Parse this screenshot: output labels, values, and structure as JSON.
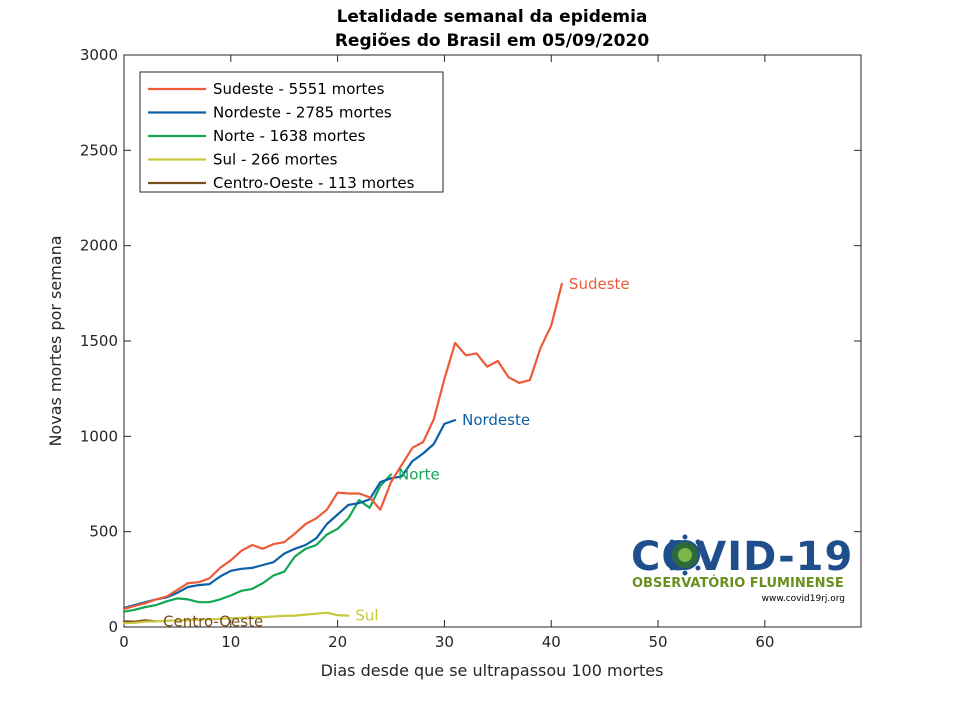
{
  "chart_data": {
    "type": "line",
    "title": "Letalidade semanal da epidemia",
    "subtitle": "Regiões do Brasil em 05/09/2020",
    "xlabel": "Dias desde que se ultrapassou 100 mortes",
    "ylabel": "Novas mortes por semana",
    "xlim": [
      0,
      69
    ],
    "ylim": [
      0,
      3000
    ],
    "xticks": [
      0,
      10,
      20,
      30,
      40,
      50,
      60
    ],
    "yticks": [
      0,
      500,
      1000,
      1500,
      2000,
      2500,
      3000
    ],
    "grid": false,
    "legend_position": "top-left",
    "series": [
      {
        "name": "Sudeste",
        "legend": "Sudeste - 5551 mortes",
        "end_label": "Sudeste",
        "color": "#ee5a37",
        "x": [
          0,
          1,
          2,
          3,
          4,
          5,
          6,
          7,
          8,
          9,
          10,
          11,
          12,
          13,
          14,
          15,
          16,
          17,
          18,
          19,
          20,
          21,
          22,
          23,
          24,
          25,
          26,
          27,
          28,
          29,
          30,
          31,
          32,
          33,
          34,
          35,
          36,
          37,
          38,
          39,
          40,
          41
        ],
        "y": [
          95,
          110,
          125,
          145,
          160,
          195,
          230,
          235,
          255,
          310,
          350,
          400,
          430,
          410,
          435,
          445,
          490,
          540,
          570,
          615,
          705,
          700,
          700,
          680,
          615,
          760,
          850,
          940,
          970,
          1090,
          1300,
          1490,
          1425,
          1435,
          1365,
          1395,
          1310,
          1280,
          1295,
          1465,
          1580,
          1800
        ]
      },
      {
        "name": "Nordeste",
        "legend": "Nordeste - 2785 mortes",
        "end_label": "Nordeste",
        "color": "#0d5fa8",
        "x": [
          0,
          1,
          2,
          3,
          4,
          5,
          6,
          7,
          8,
          9,
          10,
          11,
          12,
          13,
          14,
          15,
          16,
          17,
          18,
          19,
          20,
          21,
          22,
          23,
          24,
          25,
          26,
          27,
          28,
          29,
          30,
          31
        ],
        "y": [
          100,
          115,
          130,
          145,
          155,
          180,
          210,
          220,
          225,
          265,
          295,
          305,
          310,
          325,
          340,
          385,
          410,
          430,
          465,
          540,
          590,
          640,
          650,
          670,
          760,
          780,
          790,
          870,
          910,
          960,
          1065,
          1085
        ]
      },
      {
        "name": "Norte",
        "legend": "Norte - 1638 mortes",
        "end_label": "Norte",
        "color": "#14a651",
        "x": [
          0,
          1,
          2,
          3,
          4,
          5,
          6,
          7,
          8,
          9,
          10,
          11,
          12,
          13,
          14,
          15,
          16,
          17,
          18,
          19,
          20,
          21,
          22,
          23,
          24,
          25
        ],
        "y": [
          80,
          90,
          105,
          115,
          135,
          150,
          145,
          130,
          130,
          145,
          165,
          190,
          200,
          230,
          270,
          290,
          370,
          410,
          430,
          485,
          515,
          570,
          665,
          625,
          740,
          800
        ]
      },
      {
        "name": "Sul",
        "legend": "Sul - 266 mortes",
        "end_label": "Sul",
        "color": "#c7c93c",
        "x": [
          0,
          1,
          2,
          3,
          4,
          5,
          6,
          7,
          8,
          9,
          10,
          11,
          12,
          13,
          14,
          15,
          16,
          17,
          18,
          19,
          20,
          21
        ],
        "y": [
          20,
          22,
          28,
          30,
          32,
          35,
          36,
          38,
          40,
          43,
          45,
          48,
          50,
          52,
          55,
          58,
          60,
          65,
          70,
          75,
          62,
          60
        ]
      },
      {
        "name": "Centro-Oeste",
        "legend": "Centro-Oeste - 113 mortes",
        "end_label": "Centro-Oeste",
        "color": "#7a4f1f",
        "x": [
          0,
          1,
          2,
          3
        ],
        "y": [
          30,
          28,
          35,
          30
        ]
      }
    ]
  },
  "logo": {
    "big_text": "COVID-19",
    "sub_text": "OBSERVATÓRIO FLUMINENSE",
    "url_text": "www.covid19rj.org"
  }
}
